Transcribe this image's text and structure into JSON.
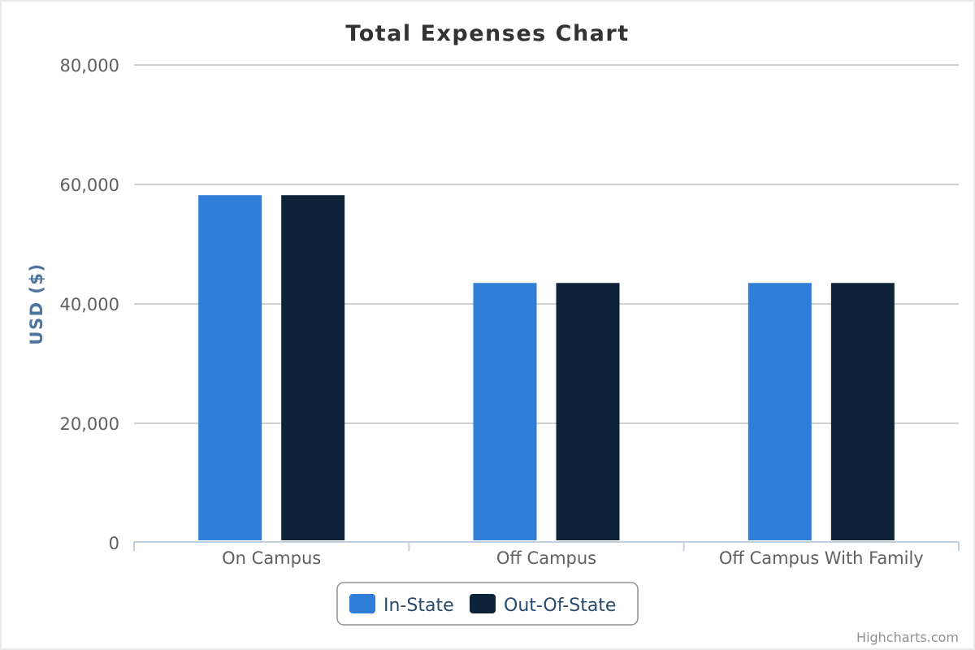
{
  "chart_data": {
    "type": "bar",
    "title": "Total Expenses Chart",
    "xlabel": "",
    "ylabel": "USD ($)",
    "ylim": [
      0,
      80000
    ],
    "yticks": [
      "0",
      "20,000",
      "40,000",
      "60,000",
      "80,000"
    ],
    "ytick_values": [
      0,
      20000,
      40000,
      60000,
      80000
    ],
    "categories": [
      "On Campus",
      "Off Campus",
      "Off Campus With Family"
    ],
    "series": [
      {
        "name": "In-State",
        "color": "#2f7ed8",
        "values": [
          58200,
          43500,
          43500
        ]
      },
      {
        "name": "Out-Of-State",
        "color": "#0d233a",
        "values": [
          58200,
          43500,
          43500
        ]
      }
    ],
    "grid": true,
    "legend": "bottom-center"
  },
  "credits": "Highcharts.com"
}
